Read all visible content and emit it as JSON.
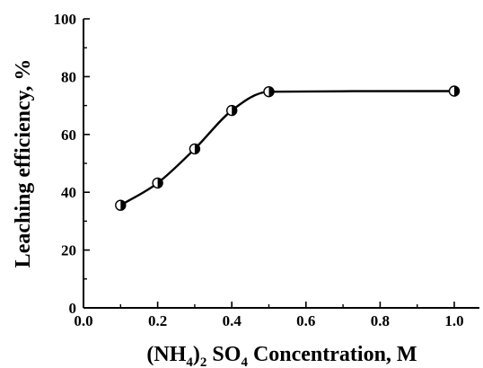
{
  "chart_data": {
    "type": "line",
    "title": "",
    "xlabel": {
      "p1": "(NH",
      "s1": "4",
      "p2": ")",
      "s2": "2",
      "p3": " SO",
      "s3": "4",
      "p4": " Concentration, M"
    },
    "ylabel": "Leaching efficiency, %",
    "xlim": [
      0.0,
      1.0
    ],
    "ylim": [
      0,
      100
    ],
    "x_ticks": [
      "0.0",
      "0.2",
      "0.4",
      "0.6",
      "0.8",
      "1.0"
    ],
    "y_ticks": [
      "0",
      "20",
      "40",
      "60",
      "80",
      "100"
    ],
    "grid": false,
    "legend": "none",
    "series": [
      {
        "x": [
          0.1,
          0.2,
          0.3,
          0.4,
          0.5,
          1.0
        ],
        "y": [
          35.5,
          43.2,
          55.0,
          68.3,
          74.8,
          75.0
        ],
        "marker": "half-filled-circle",
        "color": "#000000",
        "fit": "smooth-curve"
      }
    ]
  }
}
